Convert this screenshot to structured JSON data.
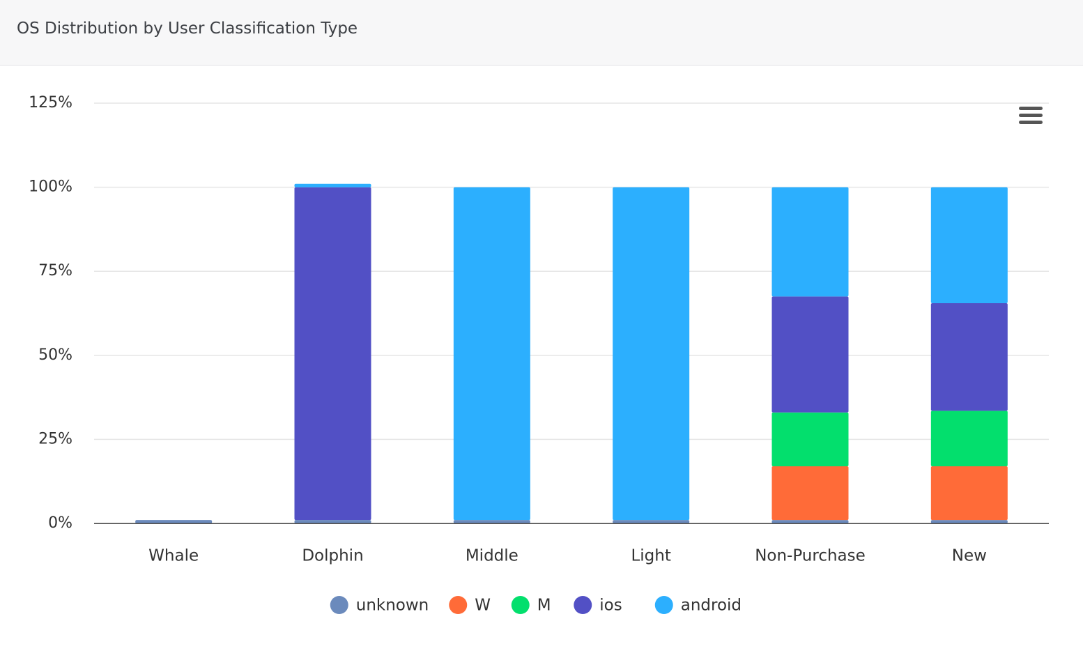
{
  "chart_data": {
    "type": "stacked_bar",
    "title": "OS Distribution by User Classification Type",
    "categories": [
      "Whale",
      "Dolphin",
      "Middle",
      "Light",
      "Non-Purchase",
      "New"
    ],
    "series": [
      {
        "name": "unknown",
        "color": "#6b8abc",
        "values": [
          1,
          1,
          1,
          1,
          1,
          1
        ]
      },
      {
        "name": "W",
        "color": "#ff6b38",
        "values": [
          0,
          0,
          0,
          0,
          16,
          16
        ]
      },
      {
        "name": "M",
        "color": "#03df6d",
        "values": [
          0,
          0,
          0,
          0,
          16,
          16.5
        ]
      },
      {
        "name": "ios",
        "color": "#5250c5",
        "values": [
          0,
          99,
          0,
          0,
          34.5,
          32
        ]
      },
      {
        "name": "android",
        "color": "#2caffe",
        "values": [
          0,
          1,
          99,
          99,
          32.5,
          34.5
        ]
      }
    ],
    "ylim": [
      0,
      125
    ],
    "yticks": [
      {
        "value": 0,
        "label": "0%"
      },
      {
        "value": 25,
        "label": "25%"
      },
      {
        "value": 50,
        "label": "50%"
      },
      {
        "value": 75,
        "label": "75%"
      },
      {
        "value": 100,
        "label": "100%"
      },
      {
        "value": 125,
        "label": "125%"
      }
    ],
    "grid": true,
    "legend": "bottom"
  }
}
